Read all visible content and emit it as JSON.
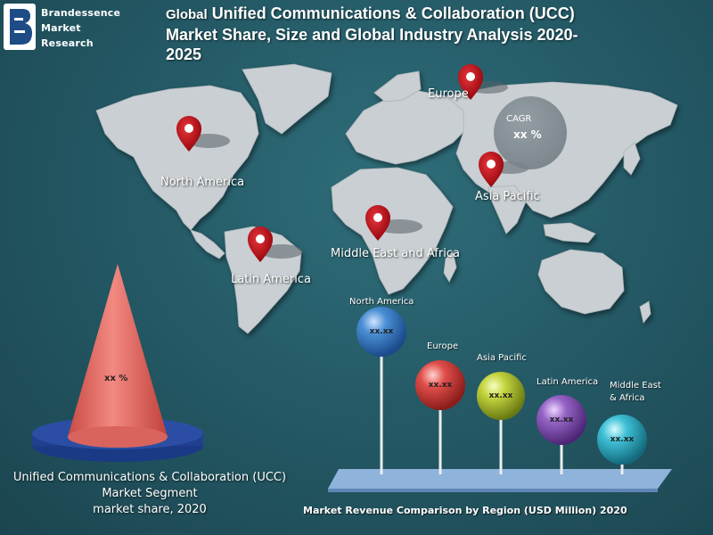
{
  "logo": {
    "line1": "Brandessence",
    "line2": "Market",
    "line3": "Research"
  },
  "title": {
    "lead": "Global",
    "line1": "Unified Communications & Collaboration (UCC)",
    "line2": "Market Share, Size and Global Industry Analysis 2020-",
    "line3": "2025"
  },
  "map_regions": {
    "north_america": "North America",
    "europe": "Europe",
    "asia_pacific": "Asia Pacific",
    "mea": "Middle East and Africa",
    "latin_america": "Latin America"
  },
  "cagr": {
    "label": "CAGR",
    "value": "xx %"
  },
  "segment": {
    "cone_value": "xx %",
    "line1": "Unified Communications & Collaboration (UCC)",
    "line2": "Market Segment",
    "line3": "market share, 2020"
  },
  "bubbles": [
    {
      "label": "North America",
      "value": "xx.xx",
      "color": "#3a7fc4"
    },
    {
      "label": "Europe",
      "value": "xx.xx",
      "color": "#d64545"
    },
    {
      "label": "Asia Pacific",
      "value": "xx.xx",
      "color": "#b9c93a"
    },
    {
      "label": "Latin America",
      "value": "xx.xx",
      "color": "#8a5bb8"
    },
    {
      "label": "Middle East\n& Africa",
      "label_line1": "Middle East",
      "label_line2": "& Africa",
      "value": "xx.xx",
      "color": "#35b9cf"
    }
  ],
  "footer": "Market Revenue Comparison by Region (USD Million) 2020",
  "colors": {
    "background": "#245a66",
    "map": "#c9cfd3",
    "pin": "#c0121a",
    "cone": "#e8655e",
    "base": "#1e3f8c"
  }
}
